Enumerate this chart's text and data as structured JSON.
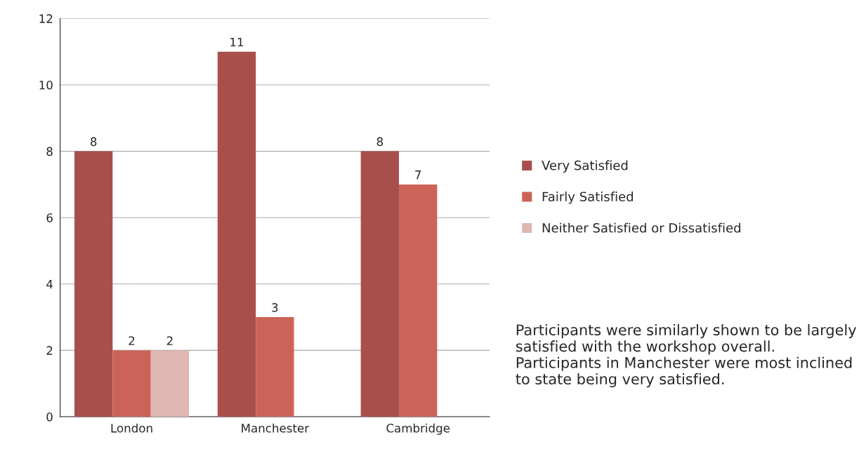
{
  "chart_data": {
    "type": "bar",
    "categories": [
      "London",
      "Manchester",
      "Cambridge"
    ],
    "series": [
      {
        "name": "Very Satisfied",
        "color": "#a84f4b",
        "values": [
          8,
          11,
          8
        ]
      },
      {
        "name": "Fairly Satisfied",
        "color": "#cc6358",
        "values": [
          2,
          3,
          7
        ]
      },
      {
        "name": "Neither Satisfied or Dissatisfied",
        "color": "#dfb6b2",
        "values": [
          2,
          null,
          null
        ]
      }
    ],
    "ylim": [
      0,
      12
    ],
    "yticks": [
      0,
      2,
      4,
      6,
      8,
      10,
      12
    ],
    "grid": "y",
    "legend": "right",
    "data_labels": true,
    "annotations": [
      "Participants were similarly shown to be largely satisfied with the workshop overall. Participants in Manchester were most inclined to state being very satisfied."
    ]
  }
}
